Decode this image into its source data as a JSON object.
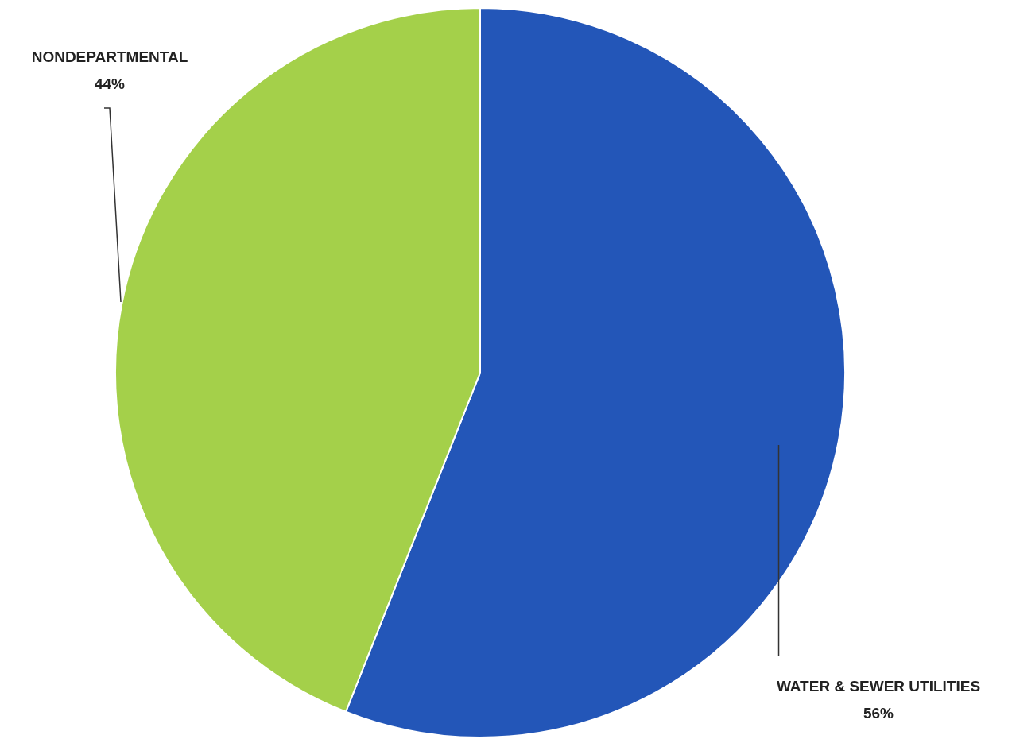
{
  "chart_data": {
    "type": "pie",
    "categories": [
      "WATER & SEWER UTILITIES",
      "NONDEPARTMENTAL"
    ],
    "values": [
      56,
      44
    ],
    "colors": [
      "#2356b8",
      "#a4d04a"
    ],
    "value_labels": [
      "56%",
      "44%"
    ]
  }
}
